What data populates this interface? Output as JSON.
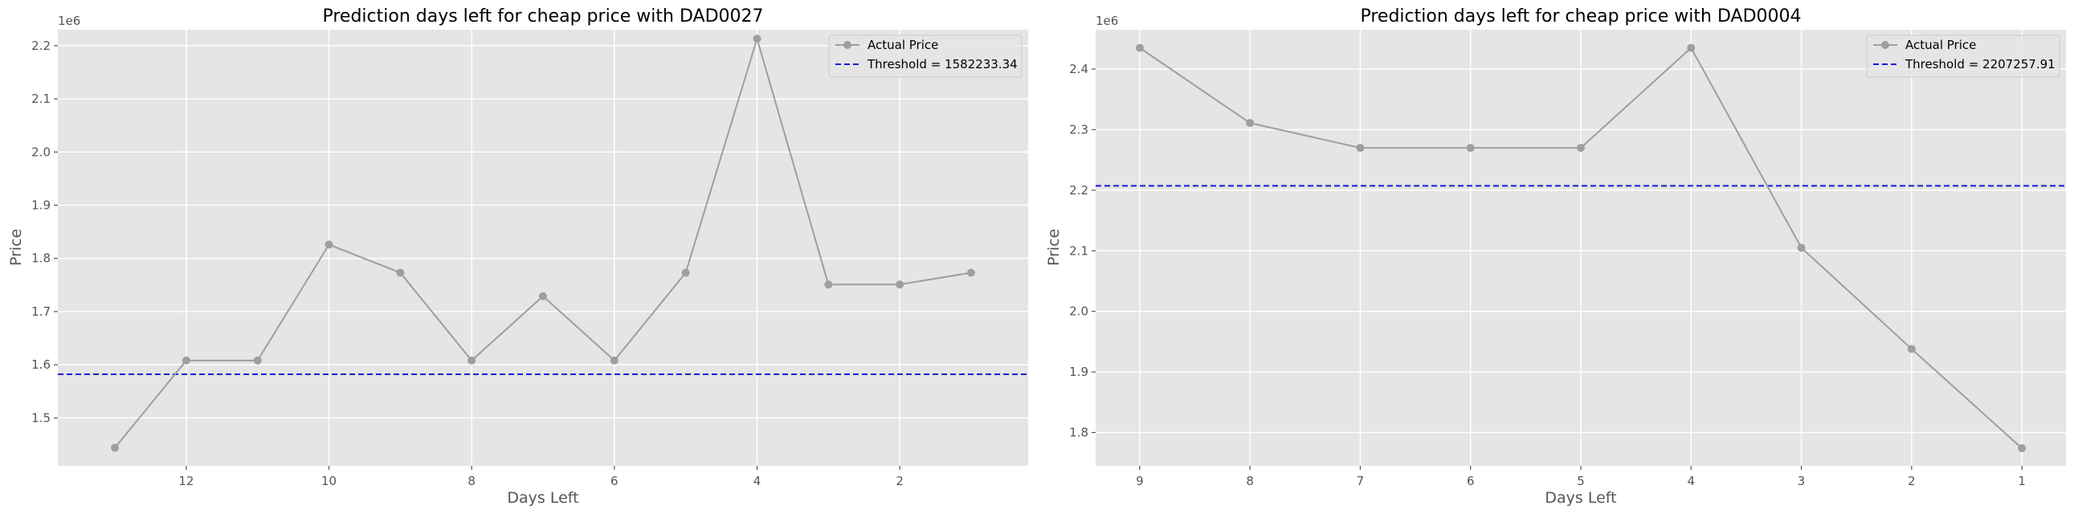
{
  "chart_data": [
    {
      "type": "line",
      "title": "Prediction days left for cheap price with DAD0027",
      "xlabel": "Days Left",
      "ylabel": "Price",
      "y_offset_label": "1e6",
      "x_inverted": true,
      "xlim": [
        13.8,
        0.2
      ],
      "ylim": [
        1.41,
        2.23
      ],
      "x_ticks": [
        12,
        10,
        8,
        6,
        4,
        2
      ],
      "y_ticks": [
        1.5,
        1.6,
        1.7,
        1.8,
        1.9,
        2.0,
        2.1,
        2.2
      ],
      "grid": true,
      "legend_position": "top-right",
      "series": [
        {
          "name": "Actual Price",
          "color": "#9e9e9e",
          "marker": "circle",
          "x": [
            13,
            12,
            11,
            10,
            9,
            8,
            7,
            6,
            5,
            4,
            3,
            2,
            1
          ],
          "y": [
            1.444,
            1.608,
            1.608,
            1.826,
            1.773,
            1.608,
            1.729,
            1.608,
            1.773,
            2.213,
            1.751,
            1.751,
            1.773
          ]
        }
      ],
      "threshold": {
        "label": "Threshold = 1582233.34",
        "value": 1.582233,
        "color": "#1a1adc",
        "style": "dashed"
      }
    },
    {
      "type": "line",
      "title": "Prediction days left for cheap price with DAD0004",
      "xlabel": "Days Left",
      "ylabel": "Price",
      "y_offset_label": "1e6",
      "x_inverted": true,
      "xlim": [
        9.4,
        0.6
      ],
      "ylim": [
        1.745,
        2.465
      ],
      "x_ticks": [
        9,
        8,
        7,
        6,
        5,
        4,
        3,
        2,
        1
      ],
      "y_ticks": [
        1.8,
        1.9,
        2.0,
        2.1,
        2.2,
        2.3,
        2.4
      ],
      "grid": true,
      "legend_position": "top-right",
      "series": [
        {
          "name": "Actual Price",
          "color": "#9e9e9e",
          "marker": "circle",
          "x": [
            9,
            8,
            7,
            6,
            5,
            4,
            3,
            2,
            1
          ],
          "y": [
            2.435,
            2.311,
            2.27,
            2.27,
            2.27,
            2.435,
            2.105,
            1.938,
            1.774
          ]
        }
      ],
      "threshold": {
        "label": "Threshold = 2207257.91",
        "value": 2.207258,
        "color": "#1a1adc",
        "style": "dashed"
      }
    }
  ],
  "style": {
    "plot_background": "#e5e5e5",
    "grid_color": "#ffffff"
  }
}
